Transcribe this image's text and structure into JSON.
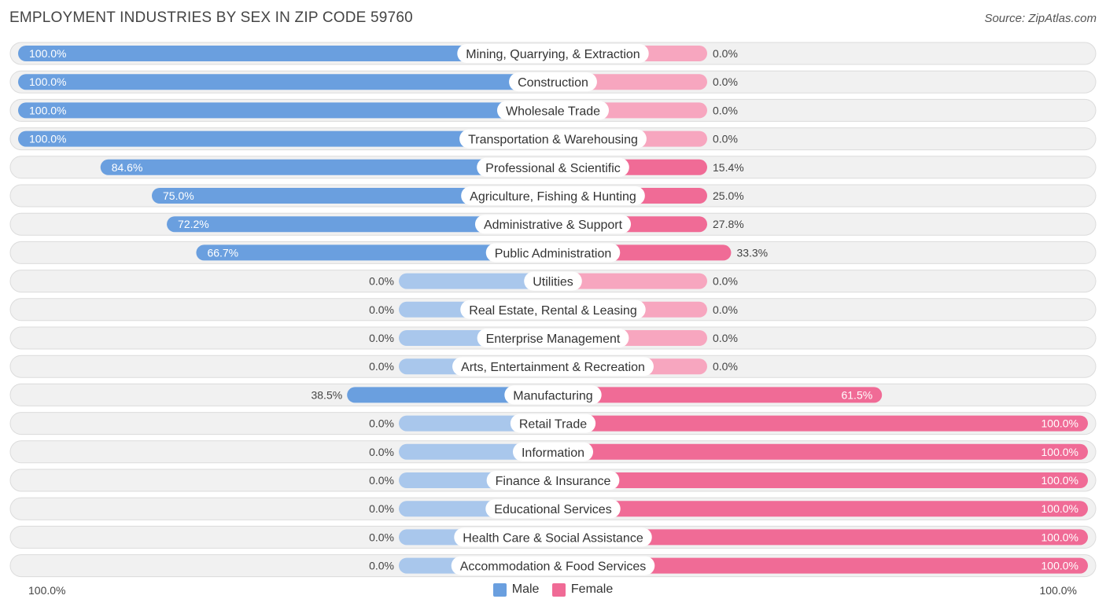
{
  "chart_data": {
    "type": "bar",
    "orientation": "horizontal-diverging",
    "title": "EMPLOYMENT INDUSTRIES BY SEX IN ZIP CODE 59760",
    "source": "Source: ZipAtlas.com",
    "categories": [
      "Mining, Quarrying, & Extraction",
      "Construction",
      "Wholesale Trade",
      "Transportation & Warehousing",
      "Professional & Scientific",
      "Agriculture, Fishing & Hunting",
      "Administrative & Support",
      "Public Administration",
      "Utilities",
      "Real Estate, Rental & Leasing",
      "Enterprise Management",
      "Arts, Entertainment & Recreation",
      "Manufacturing",
      "Retail Trade",
      "Information",
      "Finance & Insurance",
      "Educational Services",
      "Health Care & Social Assistance",
      "Accommodation & Food Services"
    ],
    "series": [
      {
        "name": "Male",
        "color": "#6a9fdf",
        "zero_color": "#a9c7ec",
        "values": [
          100.0,
          100.0,
          100.0,
          100.0,
          84.6,
          75.0,
          72.2,
          66.7,
          0.0,
          0.0,
          0.0,
          0.0,
          38.5,
          0.0,
          0.0,
          0.0,
          0.0,
          0.0,
          0.0
        ],
        "labels": [
          "100.0%",
          "100.0%",
          "100.0%",
          "100.0%",
          "84.6%",
          "75.0%",
          "72.2%",
          "66.7%",
          "0.0%",
          "0.0%",
          "0.0%",
          "0.0%",
          "38.5%",
          "0.0%",
          "0.0%",
          "0.0%",
          "0.0%",
          "0.0%",
          "0.0%"
        ]
      },
      {
        "name": "Female",
        "color": "#f06b96",
        "zero_color": "#f7a6bf",
        "values": [
          0.0,
          0.0,
          0.0,
          0.0,
          15.4,
          25.0,
          27.8,
          33.3,
          0.0,
          0.0,
          0.0,
          0.0,
          61.5,
          100.0,
          100.0,
          100.0,
          100.0,
          100.0,
          100.0
        ],
        "labels": [
          "0.0%",
          "0.0%",
          "0.0%",
          "0.0%",
          "15.4%",
          "25.0%",
          "27.8%",
          "33.3%",
          "0.0%",
          "0.0%",
          "0.0%",
          "0.0%",
          "61.5%",
          "100.0%",
          "100.0%",
          "100.0%",
          "100.0%",
          "100.0%",
          "100.0%"
        ]
      }
    ],
    "xlim": [
      -100,
      100
    ],
    "axis_left_label": "100.0%",
    "axis_right_label": "100.0%",
    "legend_position": "bottom-center"
  },
  "legend": {
    "male": "Male",
    "female": "Female"
  }
}
